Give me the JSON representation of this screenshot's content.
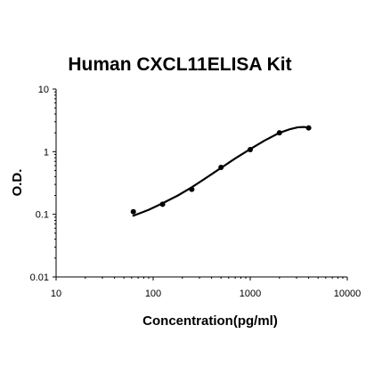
{
  "chart_data": {
    "type": "scatter",
    "title": "Human CXCL11ELISA Kit",
    "xlabel": "Concentration(pg/ml)",
    "ylabel": "O.D.",
    "x_scale": "log",
    "y_scale": "log",
    "xlim": [
      10,
      10000
    ],
    "ylim": [
      0.01,
      10
    ],
    "x_ticks": [
      "10",
      "100",
      "1000",
      "10000"
    ],
    "y_ticks": [
      "0.01",
      "0.1",
      "1",
      "10"
    ],
    "grid": false,
    "legend": "none",
    "series": [
      {
        "x": [
          62.5,
          125,
          250,
          500,
          1000,
          2000,
          4000
        ],
        "y": [
          0.11,
          0.145,
          0.25,
          0.56,
          1.08,
          2.0,
          2.4
        ]
      }
    ],
    "fit_line": {
      "x": [
        62.5,
        90,
        125,
        180,
        250,
        350,
        500,
        700,
        1000,
        1400,
        2000,
        2600,
        3100,
        3600,
        4000
      ],
      "y": [
        0.095,
        0.118,
        0.15,
        0.2,
        0.27,
        0.38,
        0.55,
        0.78,
        1.1,
        1.5,
        2.0,
        2.3,
        2.45,
        2.48,
        2.4
      ]
    },
    "colors": {
      "marker": "#000000",
      "line": "#000000",
      "axis": "#000000"
    }
  }
}
